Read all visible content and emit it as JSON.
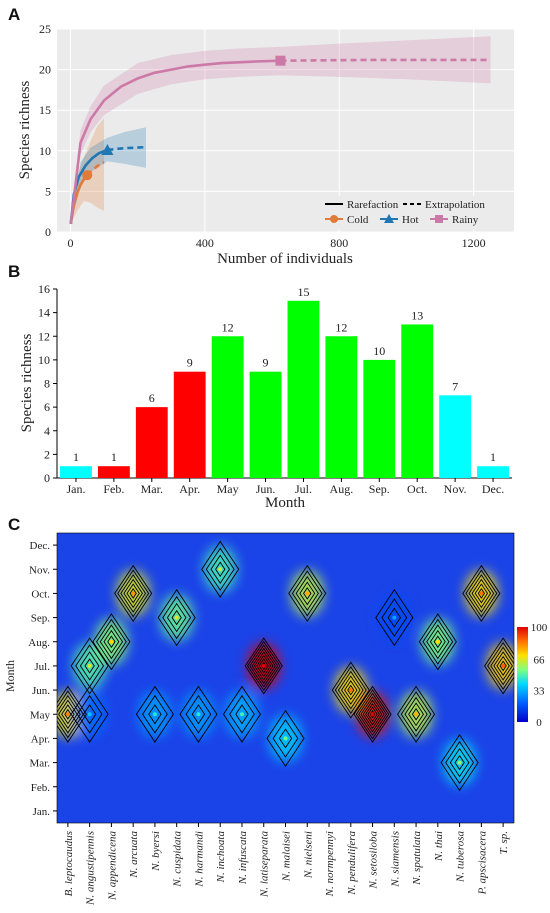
{
  "chart_data": [
    {
      "panel": "A",
      "type": "line",
      "xlabel": "Number of individuals",
      "ylabel": "Species richness",
      "xlim": [
        -40,
        1320
      ],
      "ylim": [
        0,
        25
      ],
      "xticks": [
        0,
        400,
        800,
        1200
      ],
      "yticks": [
        0,
        5,
        10,
        15,
        20,
        25
      ],
      "grid": true,
      "legend": {
        "placement": "bottom-right",
        "line_types": [
          "Rarefaction",
          "Extrapolation"
        ]
      },
      "series": [
        {
          "name": "Cold",
          "color": "#e07b39",
          "marker": "circle",
          "observed": {
            "x": 50,
            "y": 7
          },
          "rarefaction": {
            "x": [
              1,
              10,
              20,
              30,
              40,
              50
            ],
            "y": [
              1,
              3.3,
              4.8,
              5.8,
              6.5,
              7
            ]
          },
          "extrapolation": {
            "x": [
              50,
              60,
              70,
              80,
              90,
              100
            ],
            "y": [
              7,
              7.4,
              7.8,
              8.1,
              8.4,
              8.6
            ]
          },
          "ci_lower": {
            "x": [
              1,
              20,
              40,
              60,
              80,
              100
            ],
            "y": [
              1,
              2.6,
              3.8,
              3.6,
              3.0,
              2.6
            ]
          },
          "ci_upper": {
            "x": [
              1,
              20,
              40,
              60,
              80,
              100
            ],
            "y": [
              1,
              7.0,
              9.2,
              11.2,
              13.0,
              14.0
            ]
          }
        },
        {
          "name": "Hot",
          "color": "#1f77b4",
          "marker": "triangle",
          "observed": {
            "x": 110,
            "y": 10.1
          },
          "rarefaction": {
            "x": [
              1,
              10,
              25,
              45,
              65,
              85,
              110
            ],
            "y": [
              1,
              4.6,
              6.8,
              8.2,
              9.1,
              9.7,
              10.1
            ]
          },
          "extrapolation": {
            "x": [
              110,
              140,
              170,
              200,
              225
            ],
            "y": [
              10.1,
              10.25,
              10.35,
              10.4,
              10.45
            ]
          },
          "ci_lower": {
            "x": [
              1,
              30,
              60,
              110,
              160,
              225
            ],
            "y": [
              1,
              5.6,
              7.4,
              8.7,
              8.4,
              7.9
            ]
          },
          "ci_upper": {
            "x": [
              1,
              30,
              60,
              110,
              160,
              225
            ],
            "y": [
              1,
              8.6,
              10.4,
              11.6,
              12.3,
              12.9
            ]
          }
        },
        {
          "name": "Rainy",
          "color": "#cc79a7",
          "marker": "square",
          "observed": {
            "x": 625,
            "y": 21.1
          },
          "rarefaction": {
            "x": [
              1,
              30,
              60,
              100,
              150,
              200,
              250,
              300,
              350,
              400,
              450,
              500,
              550,
              625
            ],
            "y": [
              1,
              11,
              13.9,
              16.2,
              17.9,
              18.9,
              19.6,
              20.0,
              20.4,
              20.6,
              20.8,
              20.9,
              21.0,
              21.1
            ]
          },
          "extrapolation": {
            "x": [
              625,
              750,
              900,
              1050,
              1250
            ],
            "y": [
              21.1,
              21.15,
              21.2,
              21.2,
              21.2
            ]
          },
          "ci_lower": {
            "x": [
              1,
              30,
              60,
              100,
              200,
              300,
              400,
              500,
              625,
              800,
              1000,
              1250
            ],
            "y": [
              1,
              9.5,
              12.3,
              14.4,
              17.0,
              18.2,
              18.8,
              19.1,
              19.3,
              19.1,
              18.8,
              18.3
            ]
          },
          "ci_upper": {
            "x": [
              1,
              30,
              60,
              100,
              200,
              300,
              400,
              500,
              625,
              800,
              1000,
              1250
            ],
            "y": [
              1,
              12.5,
              15.5,
              18.0,
              20.8,
              21.8,
              22.3,
              22.6,
              22.8,
              23.2,
              23.6,
              24.1
            ]
          }
        }
      ]
    },
    {
      "panel": "B",
      "type": "bar",
      "xlabel": "Month",
      "ylabel": "Species richness",
      "ylim": [
        0,
        16
      ],
      "yticks": [
        0,
        2,
        4,
        6,
        8,
        10,
        12,
        14,
        16
      ],
      "categories": [
        "Jan.",
        "Feb.",
        "Mar.",
        "Apr.",
        "May",
        "Jun.",
        "Jul.",
        "Aug.",
        "Sep.",
        "Oct.",
        "Nov.",
        "Dec."
      ],
      "values": [
        1,
        1,
        6,
        9,
        12,
        9,
        15,
        12,
        10,
        13,
        7,
        1
      ],
      "colors": [
        "#00ffff",
        "#ff0000",
        "#ff0000",
        "#ff0000",
        "#00ff00",
        "#00ff00",
        "#00ff00",
        "#00ff00",
        "#00ff00",
        "#00ff00",
        "#00ffff",
        "#00ffff"
      ]
    },
    {
      "panel": "C",
      "type": "heatmap",
      "ylabel": "Month",
      "y_categories": [
        "Jan.",
        "Feb.",
        "Mar.",
        "Apr.",
        "May",
        "Jun.",
        "Jul.",
        "Aug.",
        "Sep.",
        "Oct.",
        "Nov.",
        "Dec."
      ],
      "x_categories": [
        "B. leptocaudus",
        "N. angustipennis",
        "N. appendicena",
        "N. arcuata",
        "N. byersi",
        "N. cuspidata",
        "N. harmandi",
        "N. inchoata",
        "N. infuscata",
        "N. latiseparata",
        "N. malaisei",
        "N. nielseni",
        "N. normpennyi",
        "N. pendulifera",
        "N. setosiloba",
        "N. siamensis",
        "N. spatulata",
        "N. thai",
        "N. tuberosa",
        "P. apscisacera",
        "T. sp."
      ],
      "colorbar": {
        "min": 0,
        "max": 100,
        "ticks": [
          0,
          33,
          66,
          100
        ]
      },
      "hotspots": [
        {
          "species": 0,
          "month": 4,
          "value": 68
        },
        {
          "species": 1,
          "month": 4,
          "value": 22
        },
        {
          "species": 1,
          "month": 6,
          "value": 50
        },
        {
          "species": 2,
          "month": 7,
          "value": 56
        },
        {
          "species": 3,
          "month": 9,
          "value": 66
        },
        {
          "species": 4,
          "month": 4,
          "value": 30
        },
        {
          "species": 5,
          "month": 8,
          "value": 52
        },
        {
          "species": 6,
          "month": 4,
          "value": 30
        },
        {
          "species": 7,
          "month": 10,
          "value": 48
        },
        {
          "species": 8,
          "month": 4,
          "value": 33
        },
        {
          "species": 9,
          "month": 6,
          "value": 100
        },
        {
          "species": 10,
          "month": 3,
          "value": 38
        },
        {
          "species": 11,
          "month": 9,
          "value": 62
        },
        {
          "species": 13,
          "month": 5,
          "value": 70
        },
        {
          "species": 14,
          "month": 4,
          "value": 96
        },
        {
          "species": 15,
          "month": 8,
          "value": 16
        },
        {
          "species": 16,
          "month": 4,
          "value": 62
        },
        {
          "species": 17,
          "month": 7,
          "value": 55
        },
        {
          "species": 18,
          "month": 2,
          "value": 42
        },
        {
          "species": 19,
          "month": 9,
          "value": 70
        },
        {
          "species": 20,
          "month": 6,
          "value": 72
        }
      ]
    }
  ]
}
